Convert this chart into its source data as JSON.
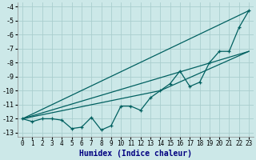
{
  "xlabel": "Humidex (Indice chaleur)",
  "ylabel": "",
  "xlim": [
    -0.5,
    23.5
  ],
  "ylim": [
    -13.3,
    -3.7
  ],
  "yticks": [
    -4,
    -5,
    -6,
    -7,
    -8,
    -9,
    -10,
    -11,
    -12,
    -13
  ],
  "xticks": [
    0,
    1,
    2,
    3,
    4,
    5,
    6,
    7,
    8,
    9,
    10,
    11,
    12,
    13,
    14,
    15,
    16,
    17,
    18,
    19,
    20,
    21,
    22,
    23
  ],
  "background_color": "#cce8e8",
  "grid_color": "#aacece",
  "line_color": "#006060",
  "line1_x": [
    0,
    1,
    2,
    3,
    4,
    5,
    6,
    7,
    8,
    9,
    10,
    11,
    12,
    13,
    14,
    15,
    16,
    17,
    18,
    19,
    20,
    21,
    22,
    23
  ],
  "line1_y": [
    -12.0,
    -12.2,
    -12.0,
    -12.0,
    -12.1,
    -12.7,
    -12.6,
    -11.9,
    -12.8,
    -12.5,
    -11.1,
    -11.1,
    -11.4,
    -10.5,
    -10.0,
    -9.5,
    -8.6,
    -9.7,
    -9.4,
    -8.0,
    -7.2,
    -7.2,
    -5.5,
    -4.3
  ],
  "line2_x": [
    0,
    23
  ],
  "line2_y": [
    -12.0,
    -4.3
  ],
  "line3_x": [
    0,
    14,
    23
  ],
  "line3_y": [
    -12.0,
    -10.0,
    -7.2
  ],
  "line4_x": [
    0,
    23
  ],
  "line4_y": [
    -12.0,
    -7.2
  ]
}
